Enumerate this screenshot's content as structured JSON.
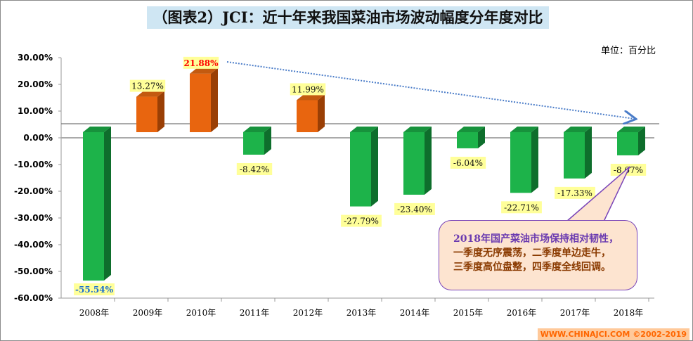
{
  "chart_data": {
    "type": "bar",
    "title": "（图表2）JCI：近十年来我国菜油市场波动幅度分年度对比",
    "unit_label": "单位：百分比",
    "categories": [
      "2008年",
      "2009年",
      "2010年",
      "2011年",
      "2012年",
      "2013年",
      "2014年",
      "2015年",
      "2016年",
      "2017年",
      "2018年"
    ],
    "values": [
      -55.54,
      13.27,
      21.88,
      -8.42,
      11.99,
      -27.79,
      -23.4,
      -6.04,
      -22.71,
      -17.33,
      -8.67
    ],
    "value_labels": [
      "-55.54%",
      "13.27%",
      "21.88%",
      "-8.42%",
      "11.99%",
      "-27.79%",
      "-23.40%",
      "-6.04%",
      "-22.71%",
      "-17.33%",
      "-8.67%"
    ],
    "yticks": [
      "30.00%",
      "20.00%",
      "10.00%",
      "0.00%",
      "-10.00%",
      "-20.00%",
      "-30.00%",
      "-40.00%",
      "-50.00%",
      "-60.00%"
    ],
    "ylim": [
      -60,
      30
    ],
    "colors": {
      "positive": "#e8650f",
      "negative": "#1db34a",
      "highlight_label": "#ff0000",
      "min_label": "#1a6fd0"
    },
    "annotation": {
      "year": "2018",
      "line1": "年国产菜油市场保持相对韧性，",
      "line2": "一季度无序震荡，二季度单边走牛，",
      "line3": "三季度高位盘整，四季度全线回调。"
    },
    "trend_arrow": "2010→2018"
  },
  "footer": "WWW.CHINAJCI.COM ©2002-2019"
}
